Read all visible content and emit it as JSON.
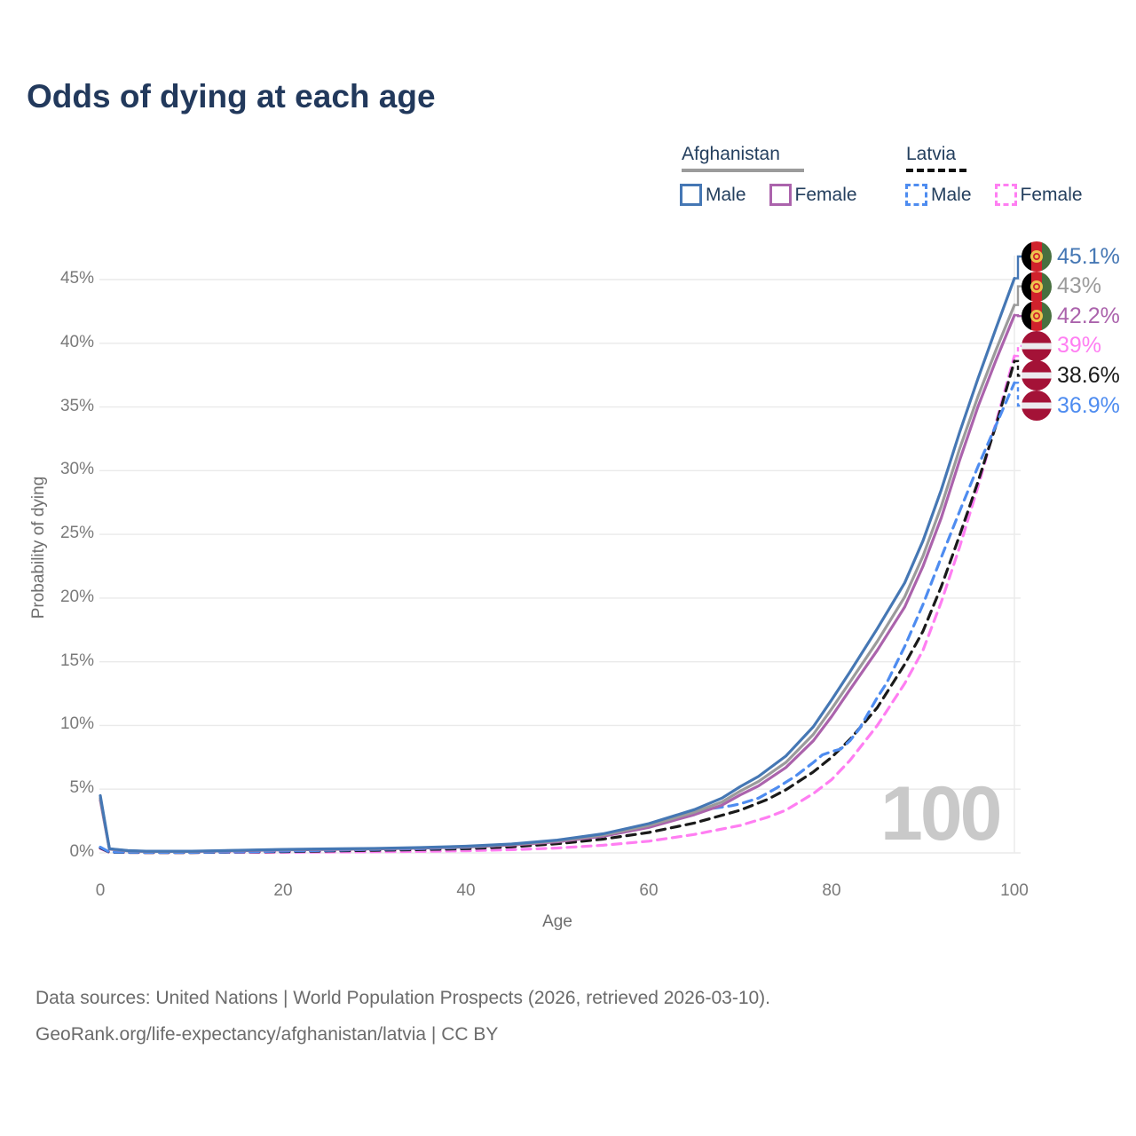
{
  "title": "Odds of dying at each age",
  "legend": {
    "groups": [
      {
        "label": "Afghanistan",
        "line_style": "solid",
        "underline_color": "#9b9b9b",
        "items": [
          {
            "label": "Male",
            "color": "#4577b4"
          },
          {
            "label": "Female",
            "color": "#ab63ac"
          }
        ]
      },
      {
        "label": "Latvia",
        "line_style": "dashed",
        "underline_color": "#111111",
        "items": [
          {
            "label": "Male",
            "color": "#4e8cf0"
          },
          {
            "label": "Female",
            "color": "#ff7ef2"
          }
        ]
      }
    ]
  },
  "y_axis": {
    "title": "Probability of dying",
    "ticks": [
      {
        "value": 45,
        "label": "45%"
      },
      {
        "value": 40,
        "label": "40%"
      },
      {
        "value": 35,
        "label": "35%"
      },
      {
        "value": 30,
        "label": "30%"
      },
      {
        "value": 25,
        "label": "25%"
      },
      {
        "value": 20,
        "label": "20%"
      },
      {
        "value": 15,
        "label": "15%"
      },
      {
        "value": 10,
        "label": "10%"
      },
      {
        "value": 5,
        "label": "5%"
      },
      {
        "value": 0,
        "label": "0%"
      }
    ]
  },
  "x_axis": {
    "title": "Age",
    "ticks": [
      {
        "value": 0,
        "label": "0"
      },
      {
        "value": 20,
        "label": "20"
      },
      {
        "value": 40,
        "label": "40"
      },
      {
        "value": 60,
        "label": "60"
      },
      {
        "value": 80,
        "label": "80"
      },
      {
        "value": 100,
        "label": "100"
      }
    ]
  },
  "watermark": "100",
  "footer": {
    "line1": "Data sources: United Nations | World Population Prospects (2026, retrieved 2026-03-10).",
    "line2": "GeoRank.org/life-expectancy/afghanistan/latvia | CC BY"
  },
  "chart_data": {
    "type": "line",
    "title": "Odds of dying at each age",
    "xlabel": "Age",
    "ylabel": "Probability of dying",
    "x_range": [
      0,
      100
    ],
    "y_range_percent": [
      0,
      45
    ],
    "grid": true,
    "legend_position": "top-right",
    "age_cursor_watermark": "100",
    "series": [
      {
        "id": "afg_male",
        "name": "Afghanistan Male",
        "country": "Afghanistan",
        "sex": "Male",
        "style": "solid",
        "color": "#4577b4",
        "end_label": "45.1%",
        "end_value_percent": 45.1,
        "points": [
          [
            0,
            4.5
          ],
          [
            1,
            0.33
          ],
          [
            3,
            0.18
          ],
          [
            5,
            0.13
          ],
          [
            10,
            0.13
          ],
          [
            15,
            0.2
          ],
          [
            20,
            0.27
          ],
          [
            25,
            0.31
          ],
          [
            30,
            0.35
          ],
          [
            35,
            0.42
          ],
          [
            40,
            0.52
          ],
          [
            45,
            0.7
          ],
          [
            50,
            1.0
          ],
          [
            55,
            1.5
          ],
          [
            60,
            2.3
          ],
          [
            65,
            3.4
          ],
          [
            68,
            4.3
          ],
          [
            70,
            5.2
          ],
          [
            72,
            6.0
          ],
          [
            75,
            7.6
          ],
          [
            78,
            9.9
          ],
          [
            80,
            12.0
          ],
          [
            82,
            14.2
          ],
          [
            85,
            17.6
          ],
          [
            88,
            21.2
          ],
          [
            90,
            24.5
          ],
          [
            92,
            28.5
          ],
          [
            94,
            33.0
          ],
          [
            96,
            37.2
          ],
          [
            98,
            41.2
          ],
          [
            100,
            45.1
          ]
        ]
      },
      {
        "id": "afg_all",
        "name": "Afghanistan Both sexes",
        "country": "Afghanistan",
        "sex": "Both",
        "style": "solid",
        "color": "#9b9b9b",
        "end_label": "43%",
        "end_value_percent": 43.0,
        "points": [
          [
            0,
            4.3
          ],
          [
            1,
            0.31
          ],
          [
            3,
            0.17
          ],
          [
            5,
            0.12
          ],
          [
            10,
            0.12
          ],
          [
            15,
            0.19
          ],
          [
            20,
            0.25
          ],
          [
            25,
            0.29
          ],
          [
            30,
            0.33
          ],
          [
            35,
            0.4
          ],
          [
            40,
            0.49
          ],
          [
            45,
            0.66
          ],
          [
            50,
            0.94
          ],
          [
            55,
            1.4
          ],
          [
            60,
            2.15
          ],
          [
            65,
            3.2
          ],
          [
            68,
            4.0
          ],
          [
            70,
            4.85
          ],
          [
            72,
            5.6
          ],
          [
            75,
            7.1
          ],
          [
            78,
            9.3
          ],
          [
            80,
            11.3
          ],
          [
            82,
            13.4
          ],
          [
            85,
            16.6
          ],
          [
            88,
            20.1
          ],
          [
            90,
            23.3
          ],
          [
            92,
            27.2
          ],
          [
            94,
            31.7
          ],
          [
            96,
            35.8
          ],
          [
            98,
            39.5
          ],
          [
            100,
            43.0
          ]
        ]
      },
      {
        "id": "afg_female",
        "name": "Afghanistan Female",
        "country": "Afghanistan",
        "sex": "Female",
        "style": "solid",
        "color": "#ab63ac",
        "end_label": "42.2%",
        "end_value_percent": 42.2,
        "points": [
          [
            0,
            4.15
          ],
          [
            1,
            0.29
          ],
          [
            3,
            0.16
          ],
          [
            5,
            0.11
          ],
          [
            10,
            0.11
          ],
          [
            15,
            0.17
          ],
          [
            20,
            0.23
          ],
          [
            25,
            0.27
          ],
          [
            30,
            0.31
          ],
          [
            35,
            0.37
          ],
          [
            40,
            0.46
          ],
          [
            45,
            0.61
          ],
          [
            50,
            0.87
          ],
          [
            55,
            1.3
          ],
          [
            60,
            2.0
          ],
          [
            65,
            3.0
          ],
          [
            68,
            3.75
          ],
          [
            70,
            4.55
          ],
          [
            72,
            5.25
          ],
          [
            75,
            6.7
          ],
          [
            78,
            8.8
          ],
          [
            80,
            10.7
          ],
          [
            82,
            12.8
          ],
          [
            85,
            15.9
          ],
          [
            88,
            19.3
          ],
          [
            90,
            22.5
          ],
          [
            92,
            26.3
          ],
          [
            94,
            30.8
          ],
          [
            96,
            35.0
          ],
          [
            98,
            38.7
          ],
          [
            100,
            42.2
          ]
        ]
      },
      {
        "id": "lat_female",
        "name": "Latvia Female",
        "country": "Latvia",
        "sex": "Female",
        "style": "dashed",
        "color": "#ff7ef2",
        "end_label": "39%",
        "end_value_percent": 39.0,
        "points": [
          [
            0,
            0.35
          ],
          [
            1,
            0.04
          ],
          [
            5,
            0.03
          ],
          [
            10,
            0.03
          ],
          [
            15,
            0.04
          ],
          [
            20,
            0.05
          ],
          [
            25,
            0.07
          ],
          [
            30,
            0.09
          ],
          [
            35,
            0.12
          ],
          [
            40,
            0.17
          ],
          [
            45,
            0.25
          ],
          [
            50,
            0.38
          ],
          [
            55,
            0.6
          ],
          [
            60,
            0.92
          ],
          [
            65,
            1.45
          ],
          [
            70,
            2.15
          ],
          [
            73,
            2.8
          ],
          [
            75,
            3.35
          ],
          [
            78,
            4.65
          ],
          [
            80,
            5.75
          ],
          [
            82,
            7.25
          ],
          [
            85,
            10.0
          ],
          [
            88,
            13.3
          ],
          [
            90,
            15.9
          ],
          [
            92,
            19.7
          ],
          [
            94,
            24.0
          ],
          [
            96,
            28.7
          ],
          [
            98,
            33.8
          ],
          [
            100,
            39.0
          ]
        ]
      },
      {
        "id": "lat_all",
        "name": "Latvia Both sexes",
        "country": "Latvia",
        "sex": "Both",
        "style": "dashed",
        "color": "#1a1a1a",
        "end_label": "38.6%",
        "end_value_percent": 38.6,
        "points": [
          [
            0,
            0.4
          ],
          [
            1,
            0.05
          ],
          [
            5,
            0.03
          ],
          [
            10,
            0.03
          ],
          [
            15,
            0.06
          ],
          [
            20,
            0.1
          ],
          [
            25,
            0.15
          ],
          [
            30,
            0.2
          ],
          [
            35,
            0.26
          ],
          [
            40,
            0.33
          ],
          [
            45,
            0.48
          ],
          [
            50,
            0.72
          ],
          [
            55,
            1.08
          ],
          [
            60,
            1.6
          ],
          [
            65,
            2.35
          ],
          [
            70,
            3.35
          ],
          [
            73,
            4.2
          ],
          [
            75,
            4.95
          ],
          [
            78,
            6.35
          ],
          [
            80,
            7.5
          ],
          [
            82,
            8.9
          ],
          [
            85,
            11.4
          ],
          [
            88,
            14.8
          ],
          [
            90,
            17.4
          ],
          [
            92,
            20.9
          ],
          [
            94,
            24.9
          ],
          [
            96,
            29.1
          ],
          [
            98,
            33.6
          ],
          [
            100,
            38.6
          ]
        ]
      },
      {
        "id": "lat_male",
        "name": "Latvia Male",
        "country": "Latvia",
        "sex": "Male",
        "style": "dashed",
        "color": "#4e8cf0",
        "end_label": "36.9%",
        "end_value_percent": 36.9,
        "points": [
          [
            0,
            0.45
          ],
          [
            1,
            0.06
          ],
          [
            5,
            0.04
          ],
          [
            10,
            0.04
          ],
          [
            15,
            0.08
          ],
          [
            20,
            0.14
          ],
          [
            25,
            0.2
          ],
          [
            30,
            0.27
          ],
          [
            35,
            0.33
          ],
          [
            40,
            0.43
          ],
          [
            45,
            0.63
          ],
          [
            50,
            0.95
          ],
          [
            55,
            1.45
          ],
          [
            60,
            2.1
          ],
          [
            63,
            2.7
          ],
          [
            65,
            3.1
          ],
          [
            67,
            3.5
          ],
          [
            69,
            3.7
          ],
          [
            70,
            3.85
          ],
          [
            72,
            4.3
          ],
          [
            74,
            5.1
          ],
          [
            76,
            6.0
          ],
          [
            78,
            7.1
          ],
          [
            79,
            7.7
          ],
          [
            80,
            7.95
          ],
          [
            81,
            8.15
          ],
          [
            82,
            8.8
          ],
          [
            83,
            9.7
          ],
          [
            85,
            12.2
          ],
          [
            86,
            13.3
          ],
          [
            88,
            16.2
          ],
          [
            90,
            19.5
          ],
          [
            92,
            23.2
          ],
          [
            94,
            26.8
          ],
          [
            96,
            30.3
          ],
          [
            98,
            33.6
          ],
          [
            100,
            36.9
          ]
        ]
      }
    ]
  }
}
